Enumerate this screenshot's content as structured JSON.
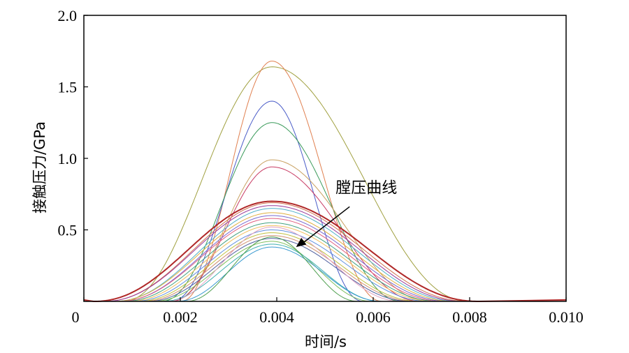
{
  "chart_data": {
    "type": "line",
    "title": "",
    "xlabel": "时间/s",
    "ylabel": "接触压力/GPa",
    "xlim": [
      0,
      0.01
    ],
    "ylim": [
      0,
      2.0
    ],
    "x_ticks": [
      "0",
      "0.002",
      "0.004",
      "0.006",
      "0.008",
      "0.010"
    ],
    "x_tick_values": [
      0,
      0.002,
      0.004,
      0.006,
      0.008,
      0.01
    ],
    "y_ticks": [
      "0.5",
      "1.0",
      "1.5",
      "2.0"
    ],
    "y_tick_values": [
      0.5,
      1.0,
      1.5,
      2.0
    ],
    "grid": false,
    "legend": "none",
    "annotation": {
      "text": "膛压曲线",
      "x": 0.0044,
      "y": 0.38,
      "text_x": 0.0058,
      "text_y": 0.74
    },
    "series": [
      {
        "color": "#a0a040",
        "peak": 1.64,
        "start": 0.0008,
        "end": 0.008,
        "lw": 1.0
      },
      {
        "color": "#e08050",
        "peak": 1.68,
        "start": 0.002,
        "end": 0.0062,
        "lw": 1.0
      },
      {
        "color": "#4a5cc8",
        "peak": 1.4,
        "start": 0.0018,
        "end": 0.0058,
        "lw": 1.0
      },
      {
        "color": "#3a9a5a",
        "peak": 1.25,
        "start": 0.0016,
        "end": 0.0066,
        "lw": 1.0
      },
      {
        "color": "#c8a060",
        "peak": 0.99,
        "start": 0.0018,
        "end": 0.0072,
        "lw": 1.0
      },
      {
        "color": "#c83c64",
        "peak": 0.94,
        "start": 0.0018,
        "end": 0.007,
        "lw": 1.0
      },
      {
        "color": "#b02828",
        "peak": 0.7,
        "start": 0.0002,
        "end": 0.0082,
        "lw": 2.0
      },
      {
        "color": "#d07050",
        "peak": 0.69,
        "start": 0.0004,
        "end": 0.008,
        "lw": 1.0
      },
      {
        "color": "#9a3a9a",
        "peak": 0.67,
        "start": 0.0004,
        "end": 0.0079,
        "lw": 1.0
      },
      {
        "color": "#50b0c8",
        "peak": 0.65,
        "start": 0.0006,
        "end": 0.0078,
        "lw": 1.0
      },
      {
        "color": "#e0b040",
        "peak": 0.62,
        "start": 0.0006,
        "end": 0.0077,
        "lw": 1.0
      },
      {
        "color": "#7a6ad0",
        "peak": 0.6,
        "start": 0.0007,
        "end": 0.0076,
        "lw": 1.0
      },
      {
        "color": "#e06080",
        "peak": 0.58,
        "start": 0.0007,
        "end": 0.0075,
        "lw": 1.0
      },
      {
        "color": "#40a080",
        "peak": 0.55,
        "start": 0.0008,
        "end": 0.0074,
        "lw": 1.0
      },
      {
        "color": "#f0c060",
        "peak": 0.53,
        "start": 0.0009,
        "end": 0.0073,
        "lw": 1.0
      },
      {
        "color": "#6090e0",
        "peak": 0.5,
        "start": 0.001,
        "end": 0.0072,
        "lw": 1.0
      },
      {
        "color": "#c0c040",
        "peak": 0.48,
        "start": 0.0011,
        "end": 0.007,
        "lw": 1.0
      },
      {
        "color": "#d09070",
        "peak": 0.46,
        "start": 0.0012,
        "end": 0.0069,
        "lw": 1.0
      },
      {
        "color": "#5060a0",
        "peak": 0.44,
        "start": 0.0013,
        "end": 0.0068,
        "lw": 1.0
      },
      {
        "color": "#80c060",
        "peak": 0.42,
        "start": 0.0014,
        "end": 0.006,
        "lw": 1.0
      },
      {
        "color": "#40b0b0",
        "peak": 0.4,
        "start": 0.0016,
        "end": 0.0062,
        "lw": 1.0
      },
      {
        "color": "#3a9ad0",
        "peak": 0.38,
        "start": 0.0019,
        "end": 0.0062,
        "lw": 1.0
      },
      {
        "color": "#50a050",
        "peak": 0.45,
        "start": 0.0021,
        "end": 0.0057,
        "lw": 1.0
      },
      {
        "color": "#e0a0c0",
        "peak": 0.52,
        "start": 0.0017,
        "end": 0.0066,
        "lw": 1.0
      }
    ]
  }
}
